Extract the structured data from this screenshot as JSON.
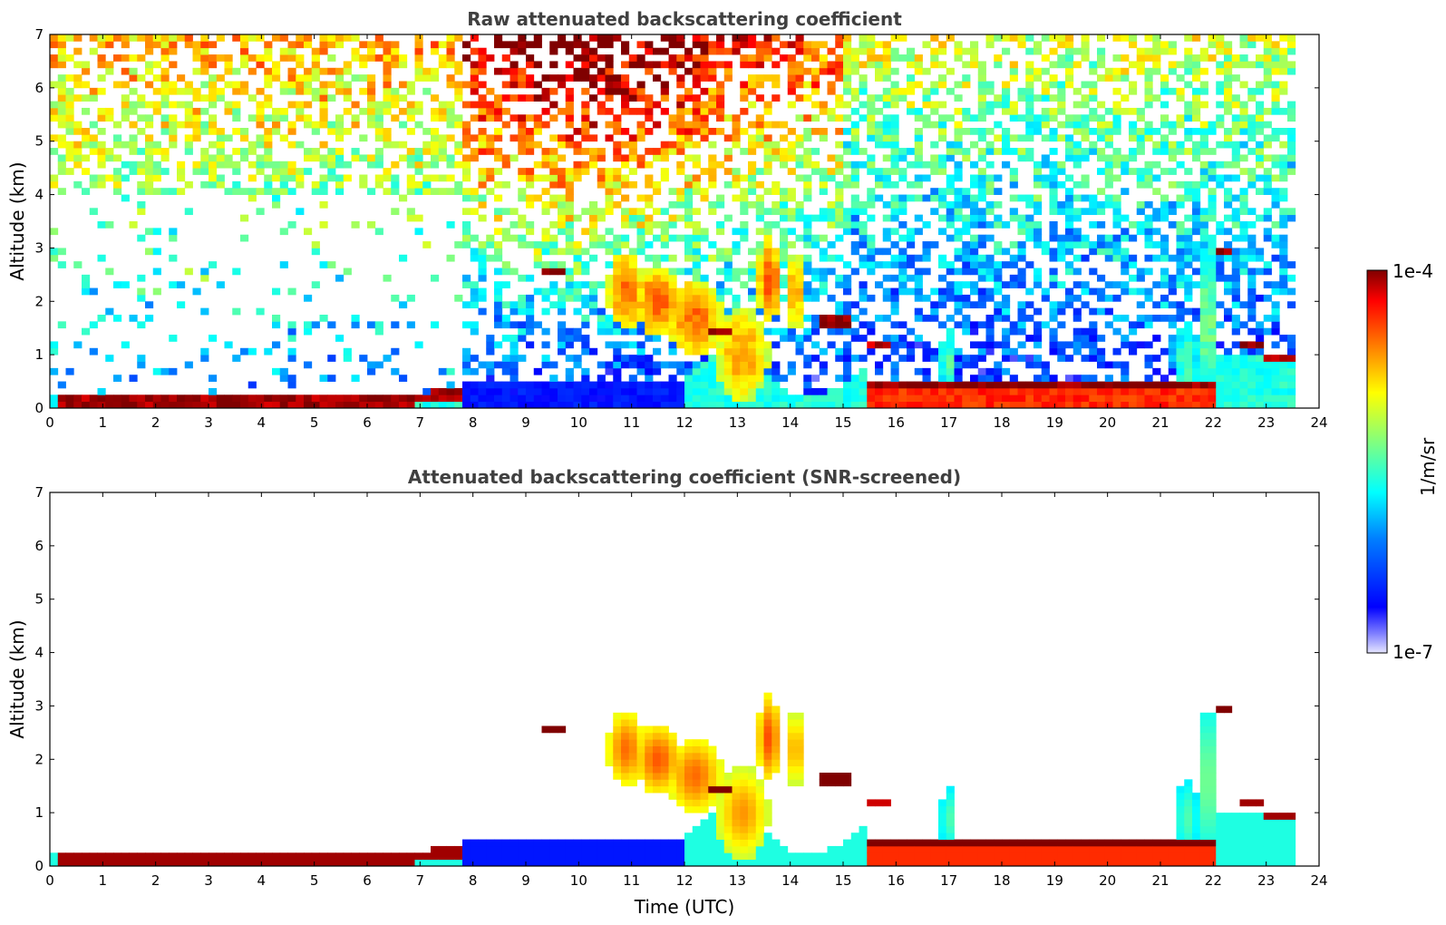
{
  "chart_data": [
    {
      "type": "heatmap",
      "title": "Raw attenuated backscattering coefficient",
      "xlabel": "",
      "ylabel": "Altitude (km)",
      "xlim": [
        0,
        24
      ],
      "ylim": [
        0,
        7
      ],
      "x_ticks": [
        0,
        1,
        2,
        3,
        4,
        5,
        6,
        7,
        8,
        9,
        10,
        11,
        12,
        13,
        14,
        15,
        16,
        17,
        18,
        19,
        20,
        21,
        22,
        23,
        24
      ],
      "y_ticks": [
        0,
        1,
        2,
        3,
        4,
        5,
        6,
        7
      ],
      "data_end_time": 23.6,
      "features": [
        {
          "name": "nocturnal boundary layer",
          "t": [
            0.2,
            7.8
          ],
          "alt": [
            0.1,
            0.3
          ],
          "level": "high"
        },
        {
          "name": "elevated layer",
          "t": [
            9.4,
            9.8
          ],
          "alt": [
            2.5,
            2.6
          ],
          "level": "high"
        },
        {
          "name": "cloud",
          "t": [
            12.5,
            12.9
          ],
          "alt": [
            1.4,
            1.5
          ],
          "level": "high"
        },
        {
          "name": "cloud",
          "t": [
            14.5,
            15.1
          ],
          "alt": [
            1.55,
            1.65
          ],
          "level": "high"
        },
        {
          "name": "convective boundary layer",
          "t": [
            15.5,
            21.9
          ],
          "alt": [
            0.2,
            0.5
          ],
          "level": "high"
        },
        {
          "name": "cloud",
          "t": [
            22.0,
            22.3
          ],
          "alt": [
            2.9,
            3.0
          ],
          "level": "high"
        },
        {
          "name": "residual layer top",
          "t": [
            22.6,
            23.6
          ],
          "alt": [
            0.9,
            1.2
          ],
          "level": "high"
        }
      ]
    },
    {
      "type": "heatmap",
      "title": "Attenuated backscattering coefficient (SNR-screened)",
      "xlabel": "Time (UTC)",
      "ylabel": "Altitude (km)",
      "xlim": [
        0,
        24
      ],
      "ylim": [
        0,
        7
      ],
      "x_ticks": [
        0,
        1,
        2,
        3,
        4,
        5,
        6,
        7,
        8,
        9,
        10,
        11,
        12,
        13,
        14,
        15,
        16,
        17,
        18,
        19,
        20,
        21,
        22,
        23,
        24
      ],
      "y_ticks": [
        0,
        1,
        2,
        3,
        4,
        5,
        6,
        7
      ],
      "data_end_time": 23.6
    }
  ],
  "colorbar": {
    "label": "1/m/sr",
    "max_label": "1e-4",
    "min_label": "1e-7",
    "colormap": "jet",
    "colors": [
      "#800000",
      "#ff0000",
      "#ffaa00",
      "#ffff00",
      "#80ff80",
      "#00ffff",
      "#0080ff",
      "#0000ff",
      "#e6e6ff"
    ]
  }
}
